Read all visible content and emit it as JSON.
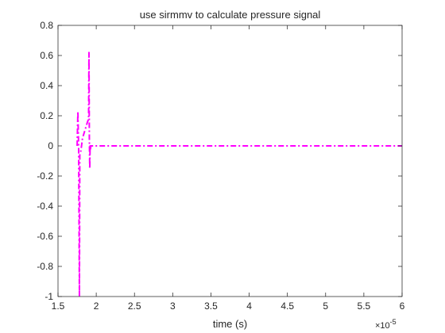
{
  "chart_data": {
    "type": "line",
    "title": "use sirmmv to calculate pressure signal",
    "xlabel": "time (s)",
    "ylabel": "",
    "x_exponent_base": "×10",
    "x_exponent_power": "-5",
    "xlim": [
      1.5e-05,
      6e-05
    ],
    "ylim": [
      -1,
      0.8
    ],
    "x_tick_values": [
      1.5e-05,
      2e-05,
      2.5e-05,
      3e-05,
      3.5e-05,
      4e-05,
      4.5e-05,
      5e-05,
      5.5e-05,
      6e-05
    ],
    "x_tick_labels": [
      "1.5",
      "2",
      "2.5",
      "3",
      "3.5",
      "4",
      "4.5",
      "5",
      "5.5",
      "6"
    ],
    "y_tick_values": [
      -1,
      -0.8,
      -0.6,
      -0.4,
      -0.2,
      0,
      0.2,
      0.4,
      0.6,
      0.8
    ],
    "y_tick_labels": [
      "-1",
      "-0.8",
      "-0.6",
      "-0.4",
      "-0.2",
      "0",
      "0.2",
      "0.4",
      "0.6",
      "0.8"
    ],
    "grid": false,
    "legend": "none",
    "series": [
      {
        "color": "#ff00ff",
        "line_style": "dash-dot",
        "x": [
          1.75e-05,
          1.76e-05,
          1.77e-05,
          1.78e-05,
          1.785e-05,
          1.79e-05,
          1.8e-05,
          1.82e-05,
          1.85e-05,
          1.88e-05,
          1.9e-05,
          1.905e-05,
          1.91e-05,
          1.915e-05,
          1.92e-05,
          1.925e-05,
          1.93e-05,
          1.95e-05,
          2e-05,
          3e-05,
          4e-05,
          5e-05,
          6e-05
        ],
        "y": [
          0.0,
          0.23,
          -0.02,
          -1.0,
          -0.06,
          -0.05,
          -0.03,
          0.05,
          0.1,
          0.15,
          0.18,
          0.62,
          0.05,
          -0.15,
          0.0,
          -0.02,
          0.0,
          0.0,
          0.0,
          0.0,
          0.0,
          0.0,
          0.0
        ]
      }
    ]
  }
}
